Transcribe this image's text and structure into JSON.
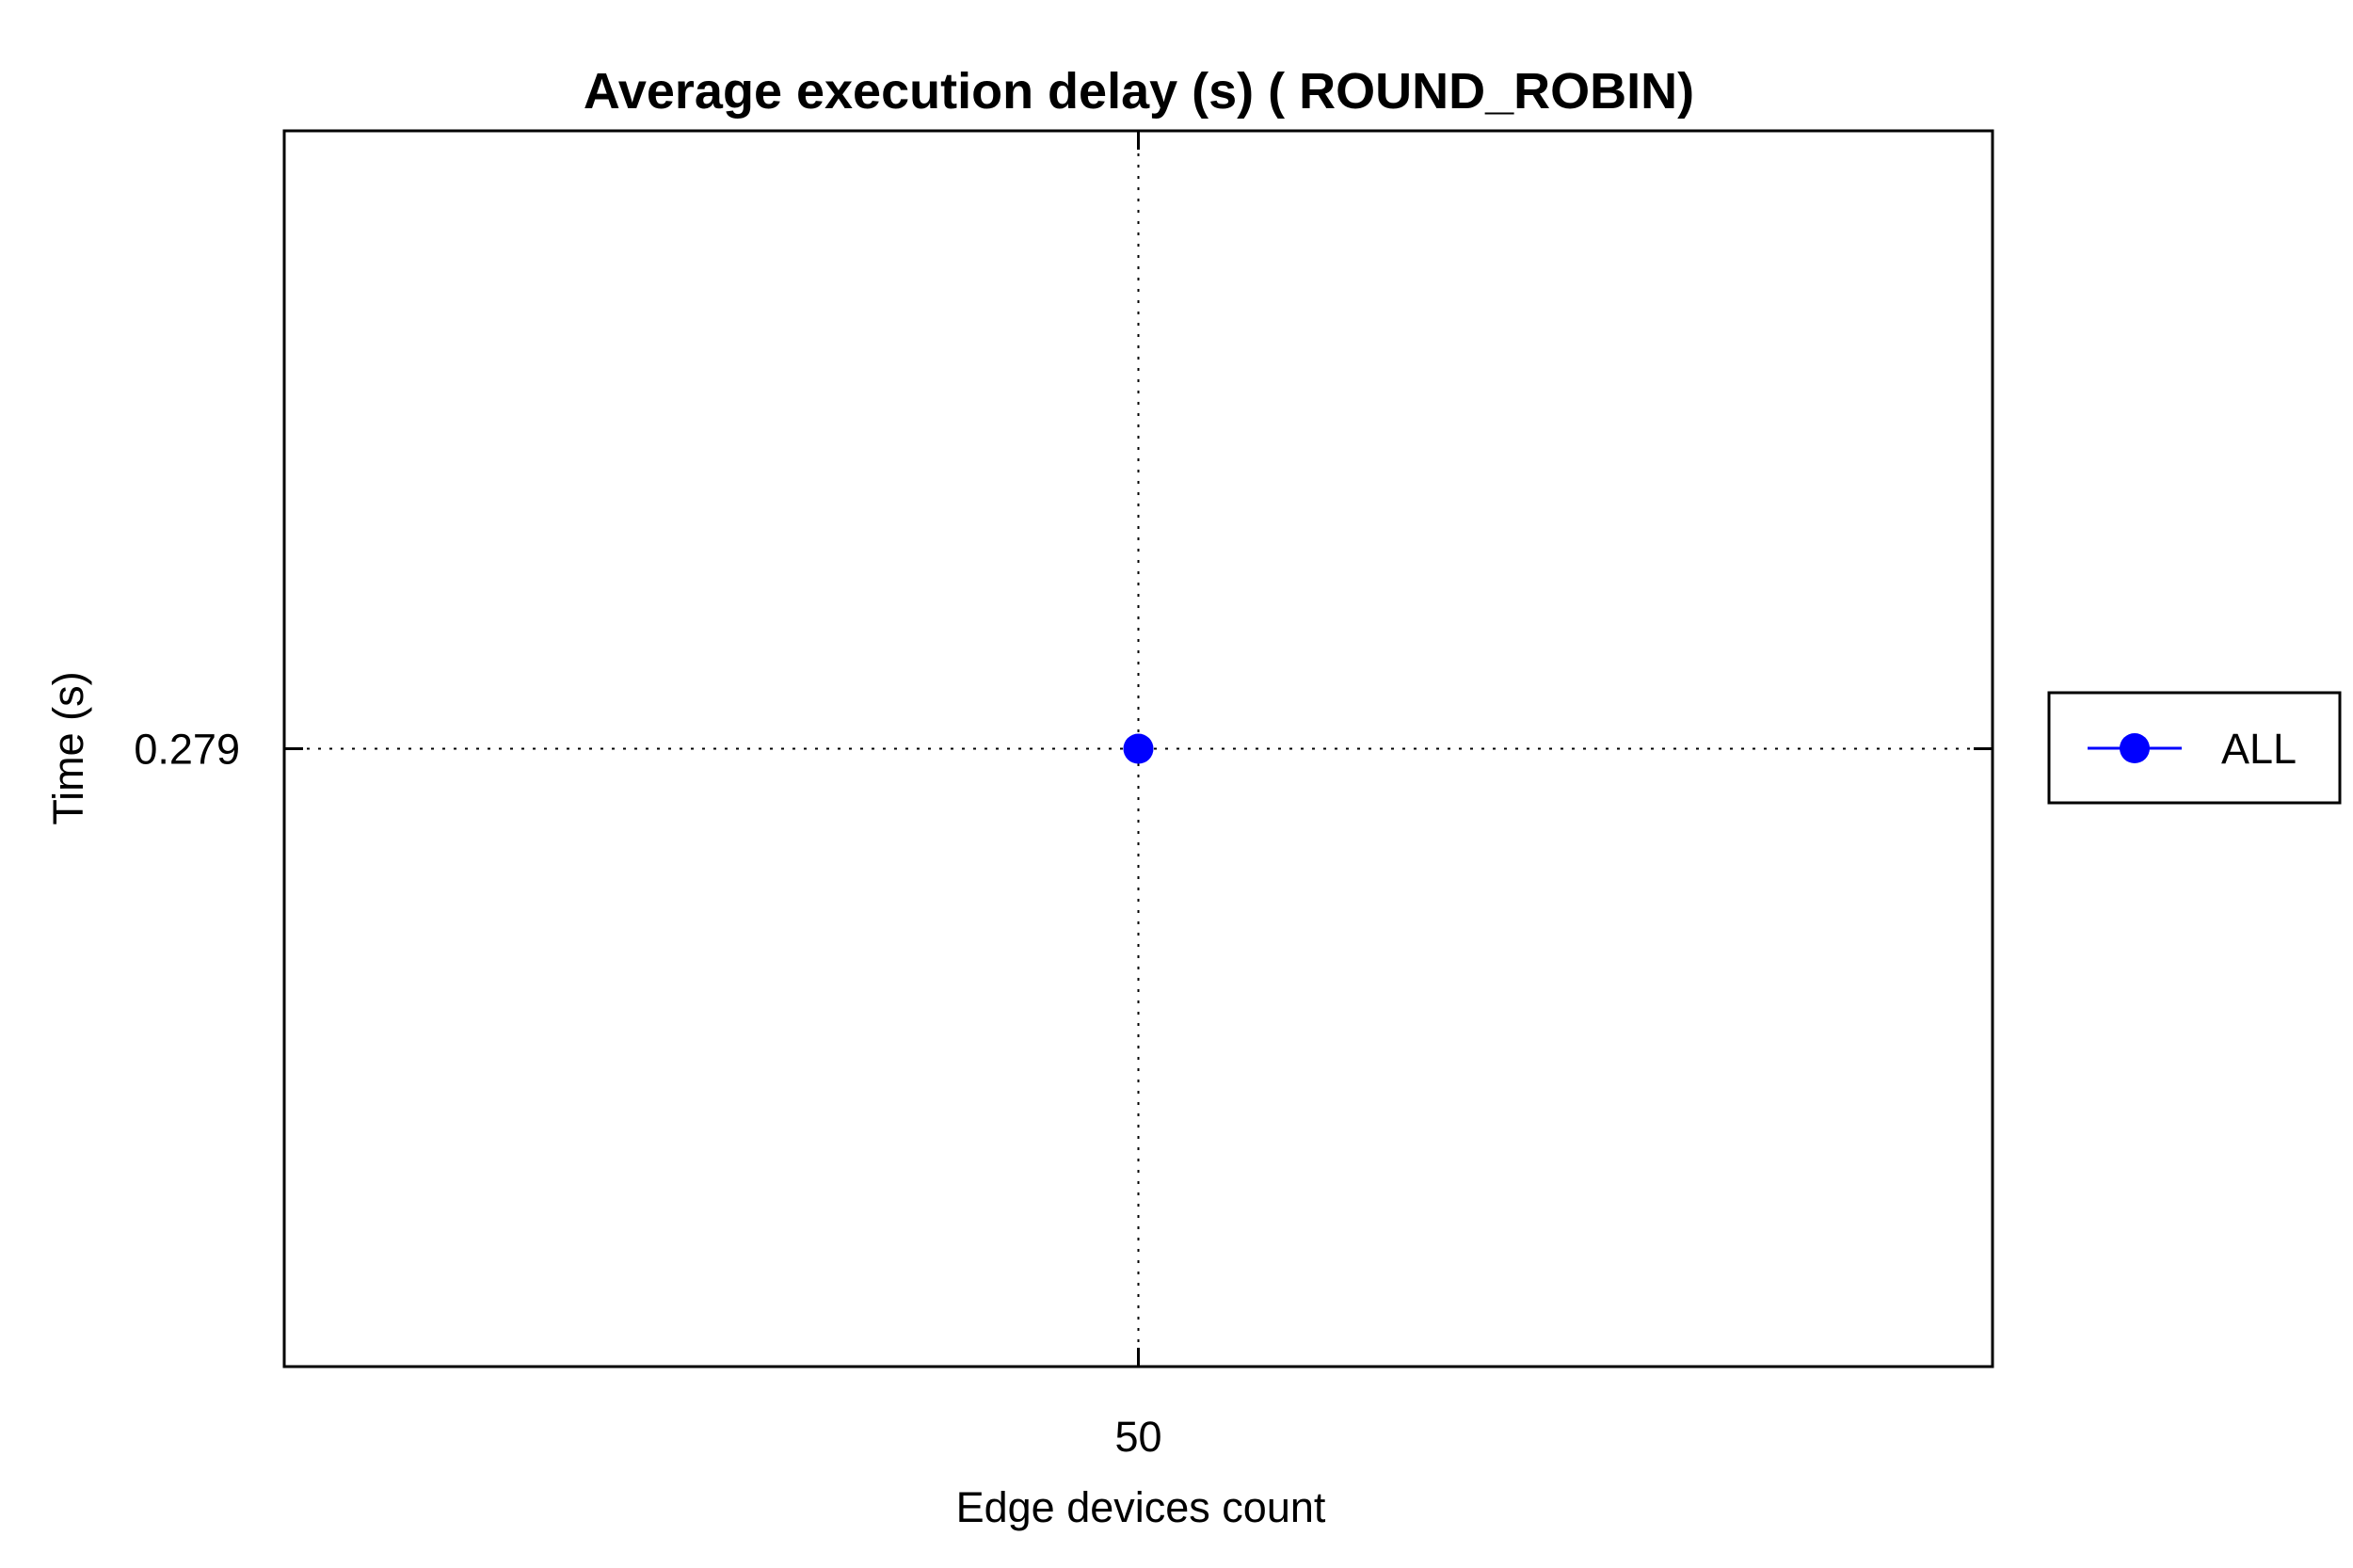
{
  "chart_data": {
    "type": "line",
    "title": "Average execution delay (s) ( ROUND_ROBIN)",
    "xlabel": "Edge devices count",
    "ylabel": "Time (s)",
    "x_ticks": [
      "50"
    ],
    "y_ticks": [
      "0.279"
    ],
    "xlim": [
      40,
      60
    ],
    "ylim": [
      0.274,
      0.284
    ],
    "grid": true,
    "legend_position": "right",
    "series": [
      {
        "name": "ALL",
        "color": "#0000ff",
        "marker": "circle",
        "x": [
          50
        ],
        "y": [
          0.279
        ]
      }
    ]
  }
}
